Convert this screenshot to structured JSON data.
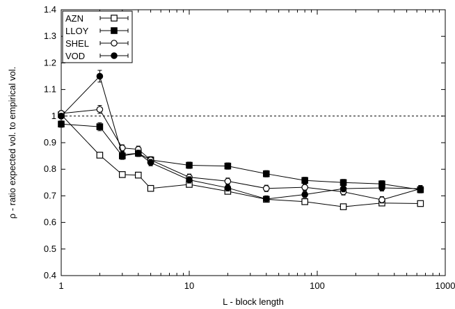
{
  "chart_data": {
    "type": "scatter",
    "xlabel": "L - block length",
    "ylabel": "ρ - ratio expected vol. to empirical vol.",
    "xscale": "log",
    "xlim": [
      1,
      1000
    ],
    "ylim": [
      0.4,
      1.4
    ],
    "xticks": [
      1,
      10,
      100,
      1000
    ],
    "xtick_labels": [
      "1",
      "10",
      "100",
      "1000"
    ],
    "yticks": [
      0.4,
      0.5,
      0.6,
      0.7,
      0.8,
      0.9,
      1,
      1.1,
      1.2,
      1.3,
      1.4
    ],
    "ytick_labels": [
      "0.4",
      "0.5",
      "0.6",
      "0.7",
      "0.8",
      "0.9",
      "1",
      "1.1",
      "1.2",
      "1.3",
      "1.4"
    ],
    "reference_line": 1.0,
    "grid": false,
    "legend_position": "top-left",
    "series": [
      {
        "name": "AZN",
        "marker": "open-square",
        "x": [
          1,
          2,
          3,
          4,
          5,
          10,
          20,
          40,
          80,
          160,
          320,
          640
        ],
        "y": [
          1.005,
          0.853,
          0.78,
          0.778,
          0.728,
          0.743,
          0.717,
          0.687,
          0.678,
          0.659,
          0.673,
          0.671
        ],
        "err": [
          0.01,
          0.01,
          0.01,
          0.01,
          0.01,
          0.01,
          0.01,
          0.01,
          0.01,
          0.01,
          0.01,
          0.01
        ]
      },
      {
        "name": "LLOY",
        "marker": "filled-square",
        "x": [
          1,
          2,
          3,
          4,
          5,
          10,
          20,
          40,
          80,
          160,
          320,
          640
        ],
        "y": [
          0.97,
          0.96,
          0.85,
          0.86,
          0.835,
          0.815,
          0.812,
          0.783,
          0.758,
          0.75,
          0.745,
          0.723
        ],
        "err": [
          0.012,
          0.015,
          0.013,
          0.012,
          0.012,
          0.012,
          0.012,
          0.012,
          0.012,
          0.012,
          0.012,
          0.012
        ]
      },
      {
        "name": "SHEL",
        "marker": "open-circle",
        "x": [
          1,
          2,
          3,
          4,
          5,
          10,
          20,
          40,
          80,
          160,
          320,
          640
        ],
        "y": [
          1.01,
          1.025,
          0.88,
          0.875,
          0.835,
          0.77,
          0.755,
          0.728,
          0.732,
          0.715,
          0.685,
          0.727
        ],
        "err": [
          0.01,
          0.015,
          0.012,
          0.012,
          0.012,
          0.012,
          0.012,
          0.012,
          0.012,
          0.012,
          0.012,
          0.012
        ]
      },
      {
        "name": "VOD",
        "marker": "filled-circle",
        "x": [
          1,
          2,
          3,
          4,
          5,
          10,
          20,
          40,
          80,
          160,
          320,
          640
        ],
        "y": [
          1.0,
          1.15,
          0.855,
          0.86,
          0.825,
          0.76,
          0.73,
          0.688,
          0.705,
          0.727,
          0.73,
          0.727
        ],
        "err": [
          0.01,
          0.022,
          0.012,
          0.012,
          0.012,
          0.012,
          0.012,
          0.012,
          0.012,
          0.012,
          0.012,
          0.012
        ]
      }
    ]
  }
}
